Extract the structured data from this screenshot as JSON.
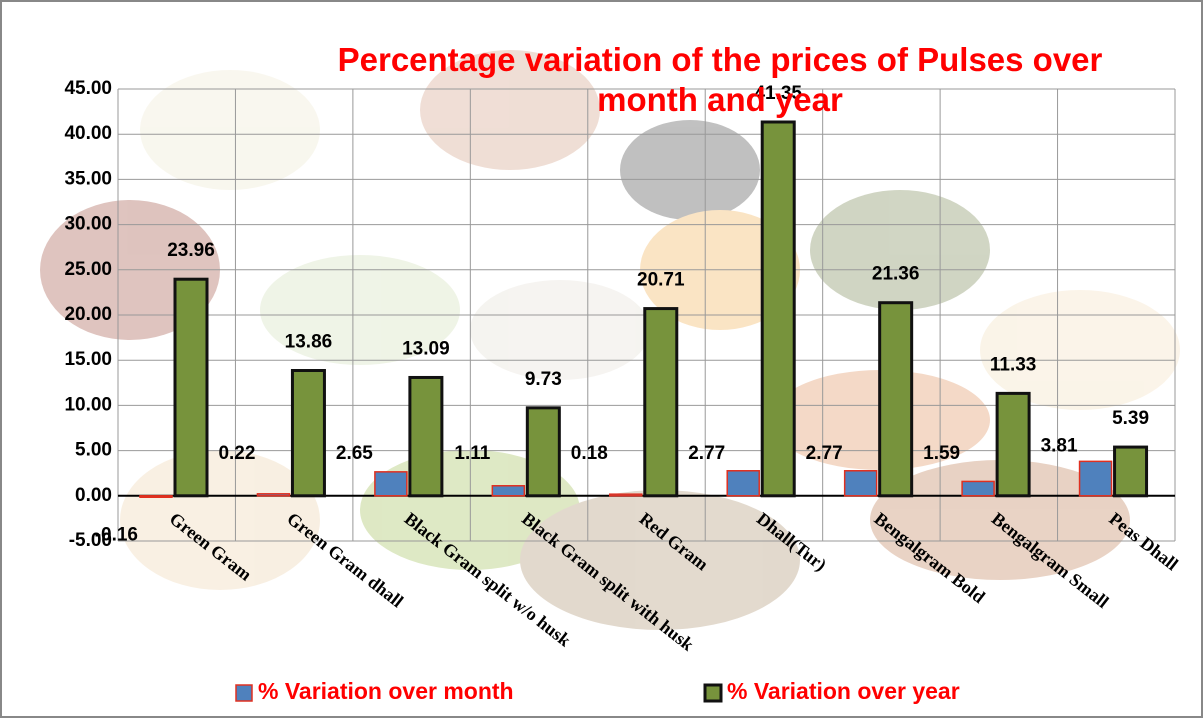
{
  "chart_data": {
    "type": "bar",
    "title": "Percentage variation of the prices of Pulses over month and year",
    "categories": [
      "Green Gram",
      "Green Gram dhall",
      "Black Gram split w/o husk",
      "Black Gram split with husk",
      "Red Gram",
      "Dhall(Tur)",
      "Bengalgram Bold",
      "Bengalgram Small",
      "Peas Dhall"
    ],
    "series": [
      {
        "name": "% Variation over month",
        "color": "#4f81bd",
        "values": [
          -0.16,
          0.22,
          2.65,
          1.11,
          0.18,
          2.77,
          2.77,
          1.59,
          3.81
        ]
      },
      {
        "name": "% Variation over year",
        "color": "#77933c",
        "values": [
          23.96,
          13.86,
          13.09,
          9.73,
          20.71,
          41.35,
          21.36,
          11.33,
          5.39
        ]
      }
    ],
    "ylim": [
      -5,
      45
    ],
    "yticks": [
      {
        "value": -5,
        "label": "-5.00"
      },
      {
        "value": 0,
        "label": "0.00"
      },
      {
        "value": 5,
        "label": "5.00"
      },
      {
        "value": 10,
        "label": "10.00"
      },
      {
        "value": 15,
        "label": "15.00"
      },
      {
        "value": 20,
        "label": "20.00"
      },
      {
        "value": 25,
        "label": "25.00"
      },
      {
        "value": 30,
        "label": "30.00"
      },
      {
        "value": 35,
        "label": "35.00"
      },
      {
        "value": 40,
        "label": "40.00"
      },
      {
        "value": 45,
        "label": "45.00"
      }
    ],
    "grid": true,
    "legend": "bottom"
  }
}
